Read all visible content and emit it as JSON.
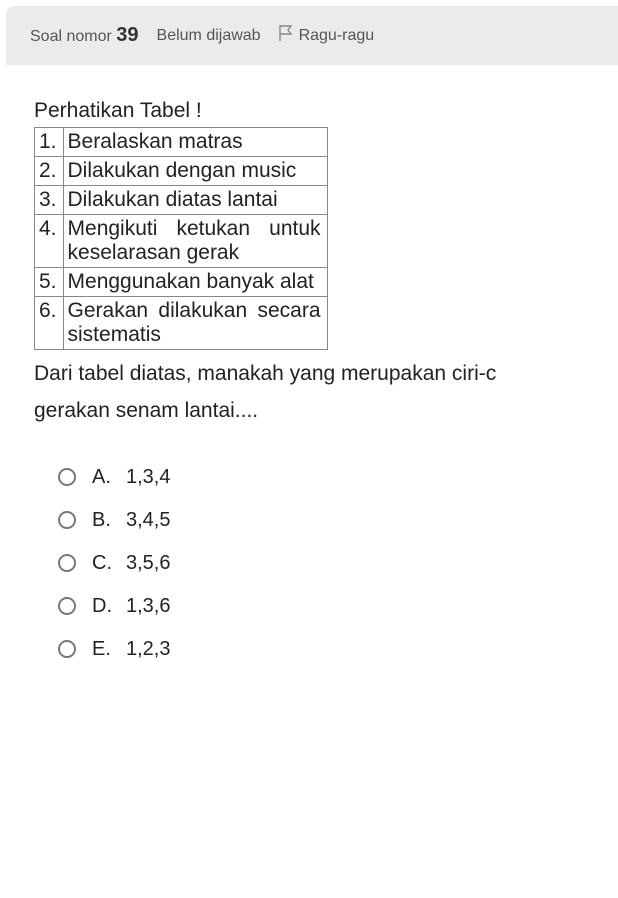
{
  "header": {
    "label_prefix": "Soal nomor ",
    "number": "39",
    "status": "Belum dijawab",
    "flag_label": "Ragu-ragu"
  },
  "question": {
    "instruction": "Perhatikan Tabel !",
    "table_rows": [
      {
        "num": "1.",
        "text": "Beralaskan matras"
      },
      {
        "num": "2.",
        "text": "Dilakukan dengan music"
      },
      {
        "num": "3.",
        "text": "Dilakukan diatas lantai"
      },
      {
        "num": "4.",
        "text": "Mengikuti ketukan untuk keselarasan gerak"
      },
      {
        "num": "5.",
        "text": "Menggunakan banyak alat"
      },
      {
        "num": "6.",
        "text": "Gerakan dilakukan secara sistematis"
      }
    ],
    "prompt_line1": "Dari tabel diatas, manakah yang merupakan ciri-c",
    "prompt_line2": "gerakan senam lantai...."
  },
  "options": [
    {
      "letter": "A.",
      "text": "1,3,4"
    },
    {
      "letter": "B.",
      "text": "3,4,5"
    },
    {
      "letter": "C.",
      "text": "3,5,6"
    },
    {
      "letter": "D.",
      "text": "1,3,6"
    },
    {
      "letter": "E.",
      "text": "1,2,3"
    }
  ],
  "colors": {
    "header_bg": "#ebebeb",
    "border": "#888888",
    "text": "#222222",
    "muted": "#555555",
    "radio_border": "#777777"
  }
}
